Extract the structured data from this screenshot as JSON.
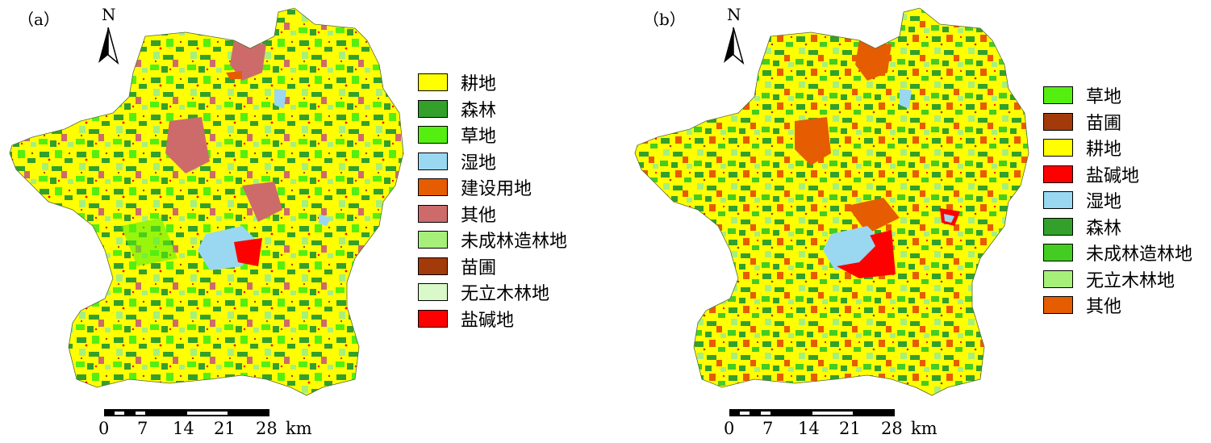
{
  "panels": [
    {
      "label": "（a）",
      "north_label": "N",
      "legend": [
        {
          "label": "耕地",
          "color": "#ffff00"
        },
        {
          "label": "森林",
          "color": "#33a02c"
        },
        {
          "label": "草地",
          "color": "#55ee11"
        },
        {
          "label": "湿地",
          "color": "#99d8f0"
        },
        {
          "label": "建设用地",
          "color": "#e65c00"
        },
        {
          "label": "其他",
          "color": "#cd6b6b"
        },
        {
          "label": "未成林造林地",
          "color": "#a6f07a"
        },
        {
          "label": "苗圃",
          "color": "#a33a0a"
        },
        {
          "label": "无立木林地",
          "color": "#d9f9c8"
        },
        {
          "label": "盐碱地",
          "color": "#ff0000"
        }
      ],
      "scale": {
        "ticks": [
          "0",
          "7",
          "14",
          "21",
          "28"
        ],
        "unit": "km"
      }
    },
    {
      "label": "（b）",
      "north_label": "N",
      "legend": [
        {
          "label": "草地",
          "color": "#55ee11"
        },
        {
          "label": "苗圃",
          "color": "#a33a0a"
        },
        {
          "label": "耕地",
          "color": "#ffff00"
        },
        {
          "label": "盐碱地",
          "color": "#ff0000"
        },
        {
          "label": "湿地",
          "color": "#99d8f0"
        },
        {
          "label": "森林",
          "color": "#33a02c"
        },
        {
          "label": "未成林造林地",
          "color": "#44cc22"
        },
        {
          "label": "无立木林地",
          "color": "#a6f07a"
        },
        {
          "label": "其他",
          "color": "#e65c00"
        }
      ],
      "scale": {
        "ticks": [
          "0",
          "7",
          "14",
          "21",
          "28"
        ],
        "unit": "km"
      }
    }
  ]
}
